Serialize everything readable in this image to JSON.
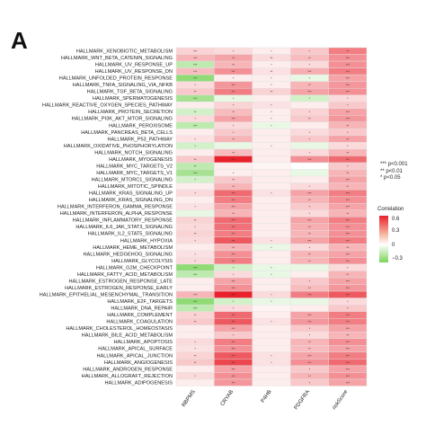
{
  "panel_label": "A",
  "significance_legend": [
    {
      "symbol": "***",
      "text": "p<0.001"
    },
    {
      "symbol": "**",
      "text": "p<0.01"
    },
    {
      "symbol": "*",
      "text": "p<0.05"
    }
  ],
  "color_legend": {
    "title": "Correlation",
    "ticks": [
      "0.6",
      "0.3",
      "0",
      "−0.3"
    ],
    "colors": {
      "high": "#e8212a",
      "mid": "#ffffff",
      "low": "#7bd45c"
    }
  },
  "chart_data": {
    "type": "heatmap",
    "columns": [
      "RBPMS",
      "CRYAB",
      "P4HB",
      "PDGFRA",
      "riskScore"
    ],
    "rows": [
      "HALLMARK_XENOBIOTIC_METABOLISM",
      "HALLMARK_WNT_BETA_CATENIN_SIGNALING",
      "HALLMARK_UV_RESPONSE_UP",
      "HALLMARK_UV_RESPONSE_DN",
      "HALLMARK_UNFOLDED_PROTEIN_RESPONSE",
      "HALLMARK_TNFA_SIGNALING_VIA_NFKB",
      "HALLMARK_TGF_BETA_SIGNALING",
      "HALLMARK_SPERMATOGENESIS",
      "HALLMARK_REACTIVE_OXYGEN_SPECIES_PATHWAY",
      "HALLMARK_PROTEIN_SECRETION",
      "HALLMARK_PI3K_AKT_MTOR_SIGNALING",
      "HALLMARK_PEROXISOME",
      "HALLMARK_PANCREAS_BETA_CELLS",
      "HALLMARK_P53_PATHWAY",
      "HALLMARK_OXIDATIVE_PHOSPHORYLATION",
      "HALLMARK_NOTCH_SIGNALING",
      "HALLMARK_MYOGENESIS",
      "HALLMARK_MYC_TARGETS_V2",
      "HALLMARK_MYC_TARGETS_V1",
      "HALLMARK_MTORC1_SIGNALING",
      "HALLMARK_MITOTIC_SPINDLE",
      "HALLMARK_KRAS_SIGNALING_UP",
      "HALLMARK_KRAS_SIGNALING_DN",
      "HALLMARK_INTERFERON_GAMMA_RESPONSE",
      "HALLMARK_INTERFERON_ALPHA_RESPONSE",
      "HALLMARK_INFLAMMATORY_RESPONSE",
      "HALLMARK_IL6_JAK_STAT3_SIGNALING",
      "HALLMARK_IL2_STAT5_SIGNALING",
      "HALLMARK_HYPOXIA",
      "HALLMARK_HEME_METABOLISM",
      "HALLMARK_HEDGEHOG_SIGNALING",
      "HALLMARK_GLYCOLYSIS",
      "HALLMARK_G2M_CHECKPOINT",
      "HALLMARK_FATTY_ACID_METABOLISM",
      "HALLMARK_ESTROGEN_RESPONSE_LATE",
      "HALLMARK_ESTROGEN_RESPONSE_EARLY",
      "HALLMARK_EPITHELIAL_MESENCHYMAL_TRANSITION",
      "HALLMARK_E2F_TARGETS",
      "HALLMARK_DNA_REPAIR",
      "HALLMARK_COMPLEMENT",
      "HALLMARK_COAGULATION",
      "HALLMARK_CHOLESTEROL_HOMEOSTASIS",
      "HALLMARK_BILE_ACID_METABOLISM",
      "HALLMARK_APOPTOSIS",
      "HALLMARK_APICAL_SURFACE",
      "HALLMARK_APICAL_JUNCTION",
      "HALLMARK_ANGIOGENESIS",
      "HALLMARK_ANDROGEN_RESPONSE",
      "HALLMARK_ALLOGRAFT_REJECTION",
      "HALLMARK_ADIPOGENESIS"
    ],
    "values": [
      [
        0.12,
        0.1,
        0.05,
        0.15,
        0.35
      ],
      [
        0.2,
        0.25,
        0.1,
        0.18,
        0.3
      ],
      [
        -0.15,
        0.2,
        0.05,
        0.1,
        0.3
      ],
      [
        0.18,
        0.3,
        0.08,
        0.22,
        0.35
      ],
      [
        -0.25,
        0.05,
        0.05,
        -0.05,
        0.25
      ],
      [
        0.1,
        0.28,
        0.05,
        0.2,
        0.28
      ],
      [
        0.15,
        0.35,
        0.12,
        0.25,
        0.3
      ],
      [
        -0.2,
        -0.05,
        0.05,
        -0.1,
        0.1
      ],
      [
        0.05,
        0.12,
        0.08,
        0.05,
        0.15
      ],
      [
        -0.1,
        0.18,
        0.05,
        0.12,
        0.25
      ],
      [
        0.1,
        0.25,
        0.05,
        0.15,
        0.28
      ],
      [
        -0.15,
        0.1,
        -0.05,
        0.05,
        0.2
      ],
      [
        0.05,
        0.15,
        0.05,
        0.1,
        0.15
      ],
      [
        0.08,
        0.2,
        0.05,
        0.15,
        0.25
      ],
      [
        -0.1,
        -0.05,
        0.05,
        -0.05,
        0.1
      ],
      [
        0.05,
        0.18,
        0.05,
        0.1,
        0.2
      ],
      [
        0.15,
        0.6,
        0.05,
        0.3,
        0.4
      ],
      [
        -0.15,
        0.05,
        0.03,
        0.0,
        0.15
      ],
      [
        -0.2,
        0.05,
        0.05,
        -0.05,
        0.2
      ],
      [
        -0.1,
        0.15,
        0.05,
        0.05,
        0.25
      ],
      [
        0.05,
        0.2,
        0.05,
        0.1,
        0.2
      ],
      [
        0.1,
        0.4,
        0.08,
        0.25,
        0.35
      ],
      [
        0.05,
        0.35,
        0.05,
        0.2,
        0.3
      ],
      [
        0.08,
        0.25,
        0.05,
        0.15,
        0.25
      ],
      [
        -0.05,
        0.2,
        0.05,
        0.1,
        0.2
      ],
      [
        0.12,
        0.4,
        0.05,
        0.25,
        0.35
      ],
      [
        0.1,
        0.38,
        0.05,
        0.22,
        0.3
      ],
      [
        0.12,
        0.35,
        0.05,
        0.2,
        0.3
      ],
      [
        0.1,
        0.45,
        0.08,
        0.25,
        0.35
      ],
      [
        0.05,
        0.2,
        -0.05,
        0.1,
        0.2
      ],
      [
        0.08,
        0.3,
        0.05,
        0.2,
        0.25
      ],
      [
        0.1,
        0.35,
        0.05,
        0.2,
        0.3
      ],
      [
        -0.25,
        -0.1,
        -0.05,
        -0.05,
        0.1
      ],
      [
        -0.15,
        0.1,
        -0.05,
        0.05,
        0.2
      ],
      [
        0.05,
        0.25,
        0.05,
        0.15,
        0.25
      ],
      [
        0.05,
        0.3,
        0.05,
        0.18,
        0.28
      ],
      [
        0.2,
        0.6,
        0.1,
        0.35,
        0.45
      ],
      [
        -0.25,
        -0.1,
        -0.05,
        -0.05,
        0.1
      ],
      [
        -0.15,
        0.1,
        0.03,
        0.05,
        0.15
      ],
      [
        0.12,
        0.4,
        0.05,
        0.25,
        0.35
      ],
      [
        0.15,
        0.45,
        0.08,
        0.28,
        0.35
      ],
      [
        0.05,
        0.25,
        0.05,
        0.15,
        0.25
      ],
      [
        0.05,
        0.15,
        0.05,
        0.1,
        0.2
      ],
      [
        0.1,
        0.35,
        0.05,
        0.2,
        0.3
      ],
      [
        0.08,
        0.3,
        0.05,
        0.18,
        0.25
      ],
      [
        0.12,
        0.45,
        0.08,
        0.25,
        0.35
      ],
      [
        0.15,
        0.5,
        0.08,
        0.3,
        0.4
      ],
      [
        0.05,
        0.25,
        0.05,
        0.15,
        0.25
      ],
      [
        0.1,
        0.3,
        0.05,
        0.2,
        0.3
      ],
      [
        0.05,
        0.28,
        0.05,
        0.15,
        0.25
      ]
    ],
    "significance": [
      [
        "***",
        "*",
        "*",
        "*",
        "**"
      ],
      [
        "***",
        "**",
        "**",
        "**",
        "***"
      ],
      [
        "***",
        "**",
        "*",
        "*",
        "***"
      ],
      [
        "***",
        "***",
        "**",
        "***",
        "***"
      ],
      [
        "***",
        "*",
        "*",
        "*",
        "***"
      ],
      [
        "*",
        "***",
        "*",
        "**",
        "***"
      ],
      [
        "**",
        "***",
        "**",
        "***",
        "***"
      ],
      [
        "***",
        "*",
        "",
        "*",
        "*"
      ],
      [
        "",
        "*",
        "*",
        "",
        "*"
      ],
      [
        "**",
        "**",
        "*",
        "*",
        "***"
      ],
      [
        "*",
        "***",
        "*",
        "**",
        "***"
      ],
      [
        "***",
        "*",
        "*",
        "",
        "**"
      ],
      [
        "",
        "*",
        "",
        "*",
        "*"
      ],
      [
        "*",
        "**",
        "",
        "*",
        "**"
      ],
      [
        "*",
        "",
        "*",
        "",
        "*"
      ],
      [
        "",
        "**",
        "",
        "*",
        "**"
      ],
      [
        "**",
        "***",
        "",
        "***",
        "***"
      ],
      [
        "**",
        "",
        "",
        "",
        "*"
      ],
      [
        "***",
        "*",
        "",
        "",
        "**"
      ],
      [
        "*",
        "**",
        "",
        "",
        "***"
      ],
      [
        "",
        "**",
        "",
        "*",
        "**"
      ],
      [
        "*",
        "***",
        "*",
        "***",
        "***"
      ],
      [
        "",
        "***",
        "",
        "**",
        "***"
      ],
      [
        "*",
        "***",
        "",
        "*",
        "***"
      ],
      [
        "",
        "**",
        "",
        "*",
        "**"
      ],
      [
        "**",
        "***",
        "",
        "***",
        "***"
      ],
      [
        "*",
        "***",
        "",
        "**",
        "***"
      ],
      [
        "**",
        "***",
        "",
        "**",
        "***"
      ],
      [
        "*",
        "***",
        "*",
        "***",
        "***"
      ],
      [
        "",
        "**",
        "*",
        "*",
        "**"
      ],
      [
        "*",
        "***",
        "",
        "**",
        "***"
      ],
      [
        "*",
        "***",
        "",
        "**",
        "***"
      ],
      [
        "***",
        "*",
        "*",
        "",
        "*"
      ],
      [
        "***",
        "*",
        "*",
        "",
        "**"
      ],
      [
        "",
        "***",
        "",
        "*",
        "***"
      ],
      [
        "",
        "***",
        "",
        "**",
        "***"
      ],
      [
        "***",
        "***",
        "*",
        "***",
        "***"
      ],
      [
        "***",
        "*",
        "*",
        "",
        "*"
      ],
      [
        "***",
        "*",
        "",
        "",
        "*"
      ],
      [
        "**",
        "***",
        "",
        "***",
        "***"
      ],
      [
        "**",
        "***",
        "*",
        "***",
        "***"
      ],
      [
        "",
        "***",
        "",
        "*",
        "***"
      ],
      [
        "",
        "*",
        "",
        "*",
        "**"
      ],
      [
        "*",
        "***",
        "",
        "**",
        "***"
      ],
      [
        "*",
        "***",
        "",
        "**",
        "***"
      ],
      [
        "**",
        "***",
        "*",
        "***",
        "***"
      ],
      [
        "**",
        "***",
        "*",
        "***",
        "***"
      ],
      [
        "",
        "***",
        "",
        "*",
        "***"
      ],
      [
        "*",
        "***",
        "",
        "**",
        "***"
      ],
      [
        "",
        "***",
        "",
        "*",
        "***"
      ]
    ],
    "color_range": [
      -0.3,
      0.6
    ]
  }
}
